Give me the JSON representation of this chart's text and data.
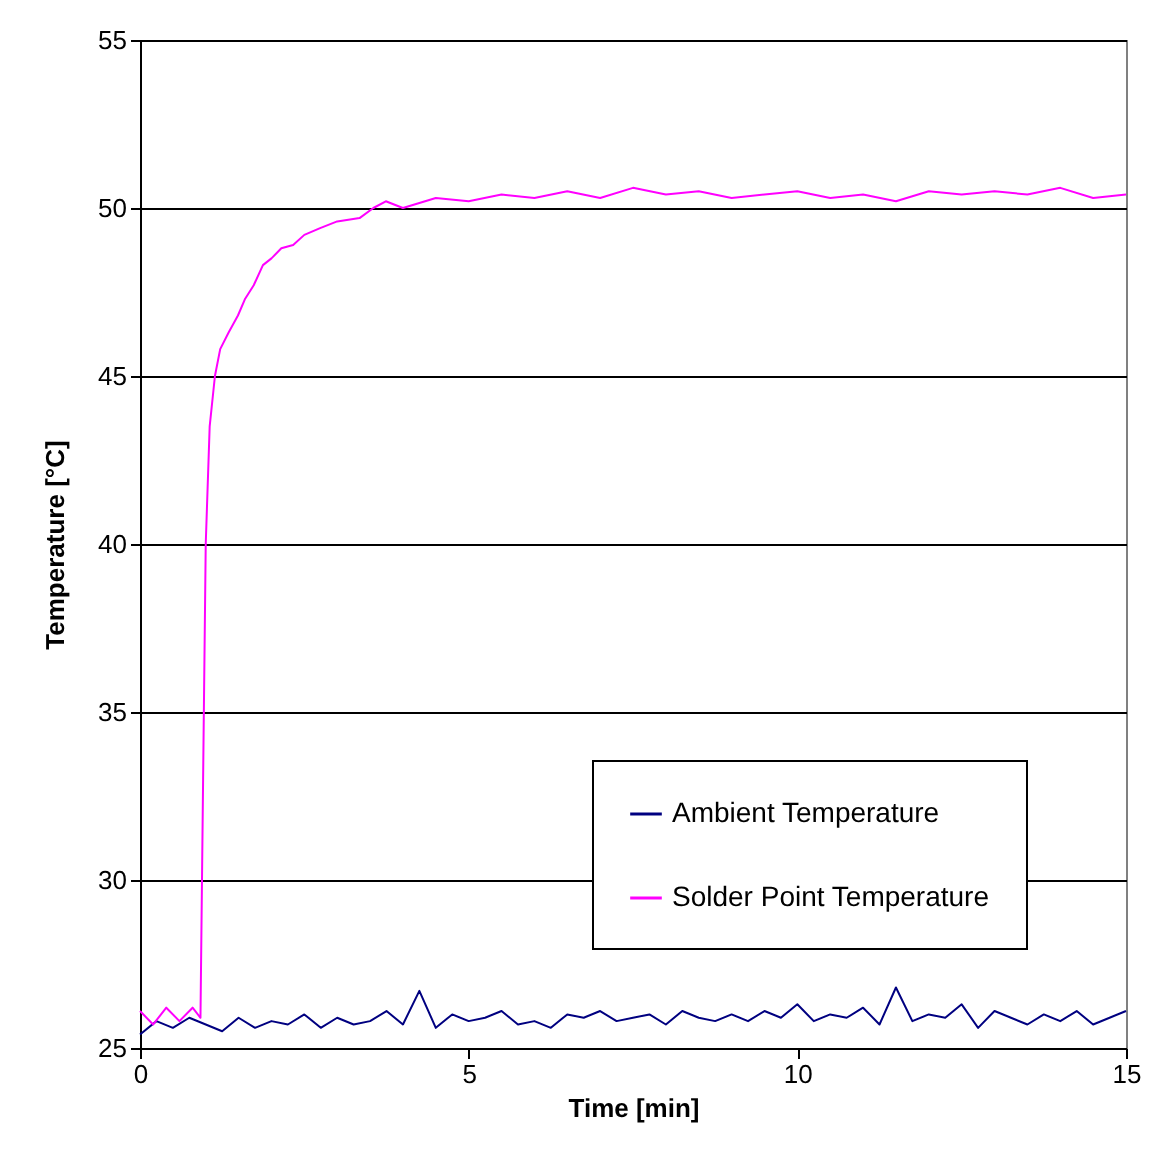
{
  "chart_data": {
    "type": "line",
    "xlabel": "Time [min]",
    "ylabel": "Temperature [°C]",
    "xlim": [
      0,
      15
    ],
    "xticks": [
      0,
      5,
      10,
      15
    ],
    "ylim": [
      25,
      55
    ],
    "yticks": [
      25,
      30,
      35,
      40,
      45,
      50,
      55
    ],
    "grid": "y",
    "legend": "bottom right",
    "series": [
      {
        "name": "Ambient Temperature",
        "color": "#000080",
        "x": [
          0,
          0.25,
          0.5,
          0.75,
          1,
          1.25,
          1.5,
          1.75,
          2,
          2.25,
          2.5,
          2.75,
          3,
          3.25,
          3.5,
          3.75,
          4,
          4.25,
          4.5,
          4.75,
          5,
          5.25,
          5.5,
          5.75,
          6,
          6.25,
          6.5,
          6.75,
          7,
          7.25,
          7.5,
          7.75,
          8,
          8.25,
          8.5,
          8.75,
          9,
          9.25,
          9.5,
          9.75,
          10,
          10.25,
          10.5,
          10.75,
          11,
          11.25,
          11.5,
          11.75,
          12,
          12.25,
          12.5,
          12.75,
          13,
          13.25,
          13.5,
          13.75,
          14,
          14.25,
          14.5,
          14.75,
          15
        ],
        "values": [
          25.4,
          25.8,
          25.6,
          25.9,
          25.7,
          25.5,
          25.9,
          25.6,
          25.8,
          25.7,
          26.0,
          25.6,
          25.9,
          25.7,
          25.8,
          26.1,
          25.7,
          26.7,
          25.6,
          26.0,
          25.8,
          25.9,
          26.1,
          25.7,
          25.8,
          25.6,
          26.0,
          25.9,
          26.1,
          25.8,
          25.9,
          26.0,
          25.7,
          26.1,
          25.9,
          25.8,
          26.0,
          25.8,
          26.1,
          25.9,
          26.3,
          25.8,
          26.0,
          25.9,
          26.2,
          25.7,
          26.8,
          25.8,
          26.0,
          25.9,
          26.3,
          25.6,
          26.1,
          25.9,
          25.7,
          26.0,
          25.8,
          26.1,
          25.7,
          25.9,
          26.1
        ]
      },
      {
        "name": "Solder Point Temperature",
        "color": "#ff00ff",
        "x": [
          0,
          0.2,
          0.4,
          0.6,
          0.8,
          0.92,
          0.96,
          1.0,
          1.06,
          1.14,
          1.22,
          1.35,
          1.49,
          1.6,
          1.73,
          1.87,
          2.0,
          2.15,
          2.33,
          2.5,
          2.74,
          3.0,
          3.34,
          3.55,
          3.74,
          4.0,
          4.5,
          5,
          5.5,
          6,
          6.5,
          7,
          7.5,
          8,
          8.5,
          9,
          9.5,
          10,
          10.5,
          11,
          11.5,
          12,
          12.5,
          13,
          13.5,
          14,
          14.5,
          15
        ],
        "values": [
          26.1,
          25.7,
          26.2,
          25.8,
          26.2,
          25.9,
          33,
          40,
          43.5,
          45.0,
          45.8,
          46.3,
          46.8,
          47.3,
          47.7,
          48.3,
          48.5,
          48.8,
          48.9,
          49.2,
          49.4,
          49.6,
          49.7,
          50.0,
          50.2,
          50.0,
          50.3,
          50.2,
          50.4,
          50.3,
          50.5,
          50.3,
          50.6,
          50.4,
          50.5,
          50.3,
          50.4,
          50.5,
          50.3,
          50.4,
          50.2,
          50.5,
          50.4,
          50.5,
          50.4,
          50.6,
          50.3,
          50.4
        ]
      }
    ]
  }
}
